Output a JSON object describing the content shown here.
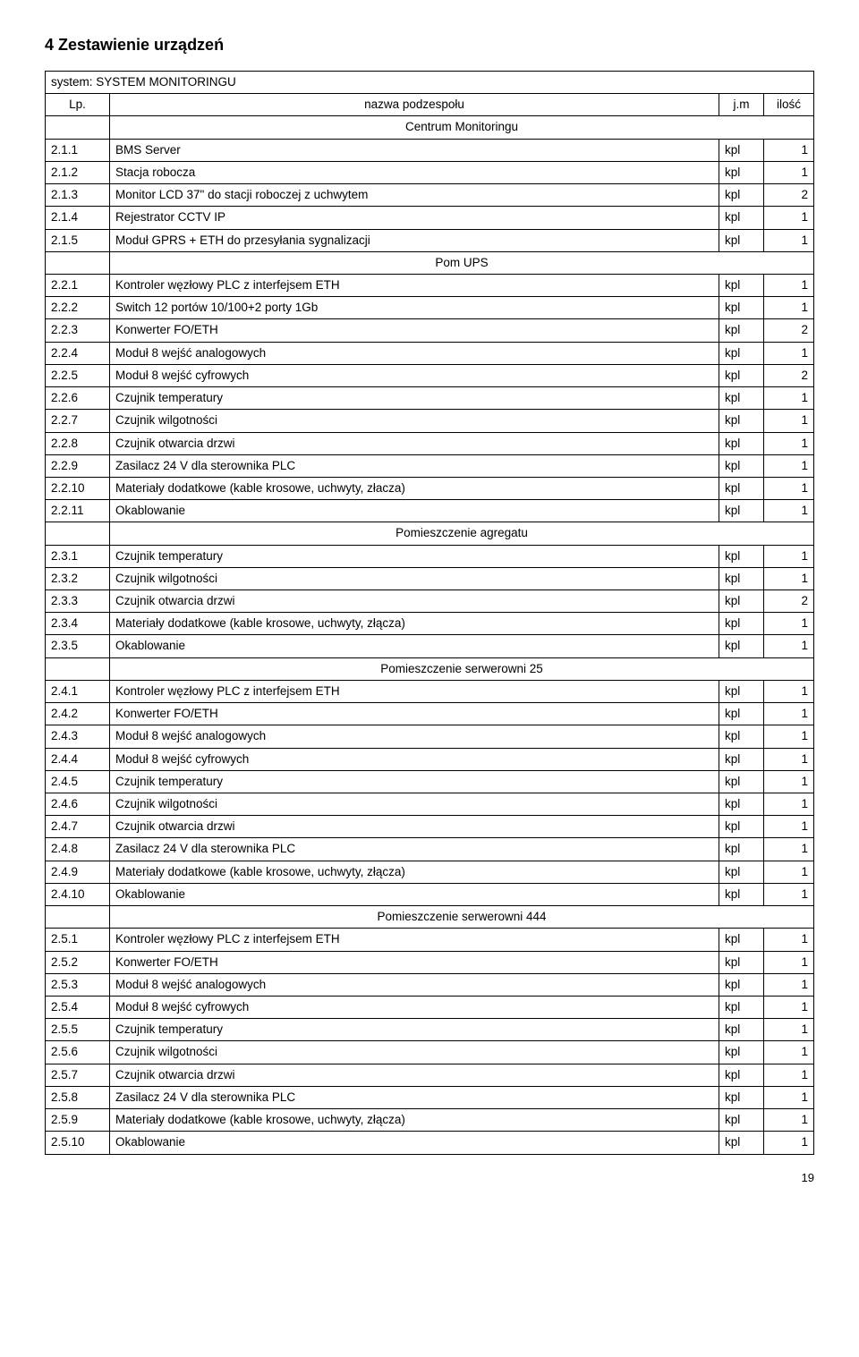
{
  "heading": "4   Zestawienie urządzeń",
  "page_number": "19",
  "columns": {
    "lp": "Lp.",
    "name": "nazwa podzespołu",
    "jm": "j.m",
    "qty": "ilość"
  },
  "system_row": "system: SYSTEM MONITORINGU",
  "sections": [
    {
      "title": "Centrum Monitoringu",
      "rows": [
        {
          "lp": "2.1.1",
          "name": "BMS Server",
          "jm": "kpl",
          "qty": "1"
        },
        {
          "lp": "2.1.2",
          "name": "Stacja robocza",
          "jm": "kpl",
          "qty": "1"
        },
        {
          "lp": "2.1.3",
          "name": "Monitor LCD 37\" do stacji roboczej z uchwytem",
          "jm": "kpl",
          "qty": "2"
        },
        {
          "lp": "2.1.4",
          "name": "Rejestrator CCTV IP",
          "jm": "kpl",
          "qty": "1"
        },
        {
          "lp": "2.1.5",
          "name": "Moduł GPRS + ETH do przesyłania sygnalizacji",
          "jm": "kpl",
          "qty": "1"
        }
      ]
    },
    {
      "title": "Pom UPS",
      "rows": [
        {
          "lp": "2.2.1",
          "name": "Kontroler węzłowy PLC z interfejsem ETH",
          "jm": "kpl",
          "qty": "1"
        },
        {
          "lp": "2.2.2",
          "name": "Switch 12 portów 10/100+2 porty 1Gb",
          "jm": "kpl",
          "qty": "1"
        },
        {
          "lp": "2.2.3",
          "name": "Konwerter FO/ETH",
          "jm": "kpl",
          "qty": "2"
        },
        {
          "lp": "2.2.4",
          "name": "Moduł 8 wejść analogowych",
          "jm": "kpl",
          "qty": "1"
        },
        {
          "lp": "2.2.5",
          "name": "Moduł 8 wejść cyfrowych",
          "jm": "kpl",
          "qty": "2"
        },
        {
          "lp": "2.2.6",
          "name": "Czujnik temperatury",
          "jm": "kpl",
          "qty": "1"
        },
        {
          "lp": "2.2.7",
          "name": "Czujnik wilgotności",
          "jm": "kpl",
          "qty": "1"
        },
        {
          "lp": "2.2.8",
          "name": "Czujnik otwarcia drzwi",
          "jm": "kpl",
          "qty": "1"
        },
        {
          "lp": "2.2.9",
          "name": "Zasilacz 24 V dla sterownika PLC",
          "jm": "kpl",
          "qty": "1"
        },
        {
          "lp": "2.2.10",
          "name": "Materiały dodatkowe (kable krosowe, uchwyty, złacza)",
          "jm": "kpl",
          "qty": "1"
        },
        {
          "lp": "2.2.11",
          "name": "Okablowanie",
          "jm": "kpl",
          "qty": "1"
        }
      ]
    },
    {
      "title": "Pomieszczenie agregatu",
      "rows": [
        {
          "lp": "2.3.1",
          "name": "Czujnik temperatury",
          "jm": "kpl",
          "qty": "1"
        },
        {
          "lp": "2.3.2",
          "name": "Czujnik wilgotności",
          "jm": "kpl",
          "qty": "1"
        },
        {
          "lp": "2.3.3",
          "name": "Czujnik otwarcia drzwi",
          "jm": "kpl",
          "qty": "2"
        },
        {
          "lp": "2.3.4",
          "name": "Materiały dodatkowe (kable krosowe, uchwyty, złącza)",
          "jm": "kpl",
          "qty": "1"
        },
        {
          "lp": "2.3.5",
          "name": "Okablowanie",
          "jm": "kpl",
          "qty": "1"
        }
      ]
    },
    {
      "title": "Pomieszczenie serwerowni 25",
      "rows": [
        {
          "lp": "2.4.1",
          "name": "Kontroler węzłowy PLC z interfejsem ETH",
          "jm": "kpl",
          "qty": "1"
        },
        {
          "lp": "2.4.2",
          "name": "Konwerter FO/ETH",
          "jm": "kpl",
          "qty": "1"
        },
        {
          "lp": "2.4.3",
          "name": "Moduł 8 wejść analogowych",
          "jm": "kpl",
          "qty": "1"
        },
        {
          "lp": "2.4.4",
          "name": "Moduł 8 wejść cyfrowych",
          "jm": "kpl",
          "qty": "1"
        },
        {
          "lp": "2.4.5",
          "name": "Czujnik temperatury",
          "jm": "kpl",
          "qty": "1"
        },
        {
          "lp": "2.4.6",
          "name": "Czujnik wilgotności",
          "jm": "kpl",
          "qty": "1"
        },
        {
          "lp": "2.4.7",
          "name": "Czujnik otwarcia drzwi",
          "jm": "kpl",
          "qty": "1"
        },
        {
          "lp": "2.4.8",
          "name": "Zasilacz 24 V dla sterownika PLC",
          "jm": "kpl",
          "qty": "1"
        },
        {
          "lp": "2.4.9",
          "name": "Materiały dodatkowe (kable krosowe, uchwyty, złącza)",
          "jm": "kpl",
          "qty": "1"
        },
        {
          "lp": "2.4.10",
          "name": "Okablowanie",
          "jm": "kpl",
          "qty": "1"
        }
      ]
    },
    {
      "title": "Pomieszczenie serwerowni 444",
      "rows": [
        {
          "lp": "2.5.1",
          "name": "Kontroler węzłowy PLC z interfejsem ETH",
          "jm": "kpl",
          "qty": "1"
        },
        {
          "lp": "2.5.2",
          "name": "Konwerter FO/ETH",
          "jm": "kpl",
          "qty": "1"
        },
        {
          "lp": "2.5.3",
          "name": "Moduł 8 wejść analogowych",
          "jm": "kpl",
          "qty": "1"
        },
        {
          "lp": "2.5.4",
          "name": "Moduł 8 wejść cyfrowych",
          "jm": "kpl",
          "qty": "1"
        },
        {
          "lp": "2.5.5",
          "name": "Czujnik temperatury",
          "jm": "kpl",
          "qty": "1"
        },
        {
          "lp": "2.5.6",
          "name": "Czujnik wilgotności",
          "jm": "kpl",
          "qty": "1"
        },
        {
          "lp": "2.5.7",
          "name": "Czujnik otwarcia drzwi",
          "jm": "kpl",
          "qty": "1"
        },
        {
          "lp": "2.5.8",
          "name": "Zasilacz 24 V dla sterownika PLC",
          "jm": "kpl",
          "qty": "1"
        },
        {
          "lp": "2.5.9",
          "name": "Materiały dodatkowe (kable krosowe, uchwyty, złącza)",
          "jm": "kpl",
          "qty": "1"
        },
        {
          "lp": "2.5.10",
          "name": "Okablowanie",
          "jm": "kpl",
          "qty": "1"
        }
      ]
    }
  ]
}
